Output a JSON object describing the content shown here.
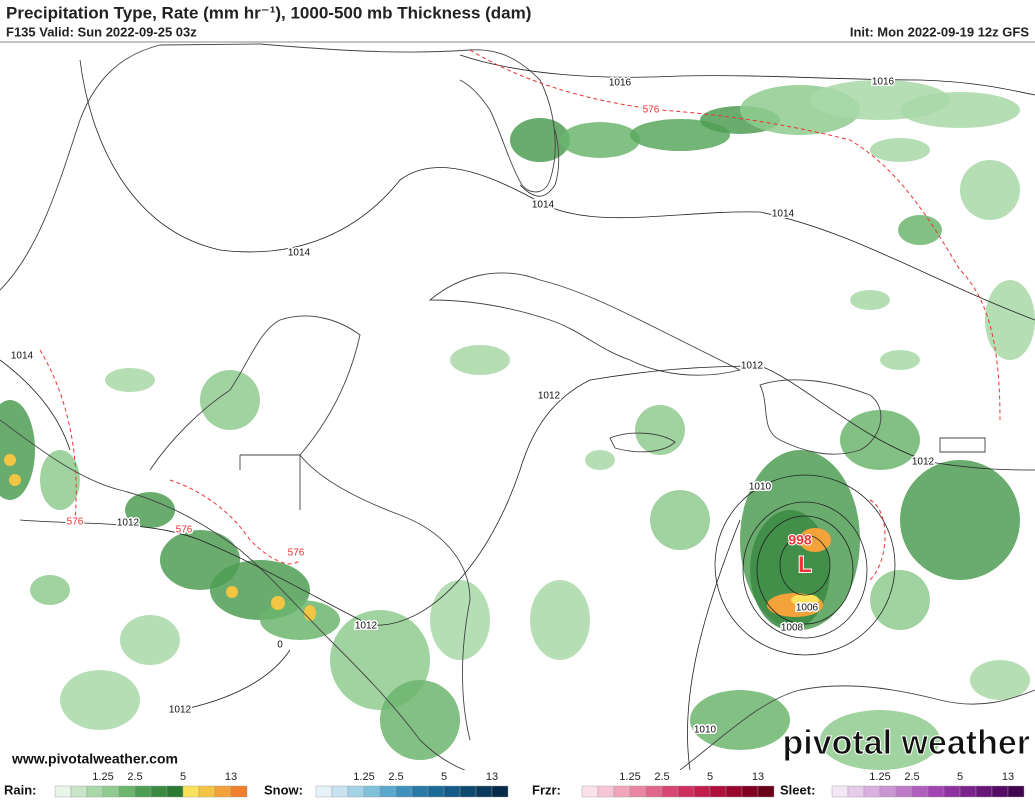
{
  "header": {
    "title": "Precipitation Type, Rate (mm hr⁻¹), 1000-500 mb Thickness (dam)",
    "valid": "F135 Valid: Sun 2022-09-25 03z",
    "init": "Init: Mon 2022-09-19 12z GFS"
  },
  "map": {
    "contour_labels": [
      "1016",
      "1016",
      "576",
      "1014",
      "1014",
      "1014",
      "1014",
      "1012",
      "1012",
      "1012",
      "1012",
      "1012",
      "1012",
      "576",
      "576",
      "576",
      "1010",
      "998",
      "L",
      "1006",
      "1008",
      "1010",
      "0"
    ]
  },
  "footer": {
    "url": "www.pivotalweather.com",
    "brand": "pivotal weather"
  },
  "legend": [
    {
      "label": "Rain:",
      "ticks": [
        1.25,
        2.5,
        5,
        13
      ]
    },
    {
      "label": "Snow:",
      "ticks": [
        1.25,
        2.5,
        5,
        13
      ]
    },
    {
      "label": "Frzr:",
      "ticks": [
        1.25,
        2.5,
        5,
        13
      ]
    },
    {
      "label": "Sleet:",
      "ticks": [
        1.25,
        2.5,
        5,
        13
      ]
    }
  ]
}
